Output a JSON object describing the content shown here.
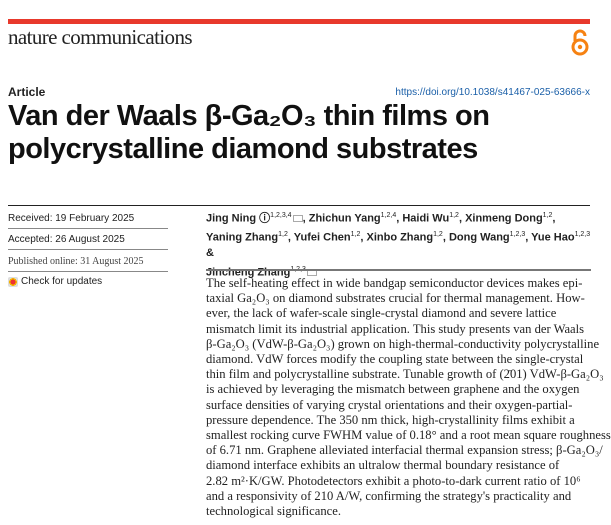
{
  "journal": "nature communications",
  "open_access_icon": "open-access-lock-icon",
  "colors": {
    "brand_bar": "#e8392c",
    "open_access": "#f68212",
    "doi_link": "#1a5fa8"
  },
  "article_type": "Article",
  "doi": "https://doi.org/10.1038/s41467-025-63666-x",
  "title": [
    "Van der Waals β-Ga₂O₃ thin films on",
    "polycrystalline diamond substrates"
  ],
  "dates": {
    "received": "Received: 19 February 2025",
    "accepted": "Accepted: 26 August 2025",
    "published": "Published online: 31 August 2025"
  },
  "check_updates": "Check for updates",
  "authors": [
    {
      "name": "Jing Ning",
      "aff": "1,2,3,4",
      "orcid": true,
      "corresponding": true
    },
    {
      "name": "Zhichun Yang",
      "aff": "1,2,4"
    },
    {
      "name": "Haidi Wu",
      "aff": "1,2"
    },
    {
      "name": "Xinmeng Dong",
      "aff": "1,2"
    },
    {
      "name": "Yaning Zhang",
      "aff": "1,2"
    },
    {
      "name": "Yufei Chen",
      "aff": "1,2"
    },
    {
      "name": "Xinbo Zhang",
      "aff": "1,2"
    },
    {
      "name": "Dong Wang",
      "aff": "1,2,3"
    },
    {
      "name": "Yue Hao",
      "aff": "1,2,3"
    },
    {
      "name": "Jincheng Zhang",
      "aff": "1,2,3",
      "corresponding": true
    }
  ],
  "abstract_lines": [
    "The self-heating effect in wide bandgap semiconductor devices makes epi-",
    "taxial Ga₂O₃ on diamond substrates crucial for thermal management. How-",
    "ever, the lack of wafer-scale single-crystal diamond and severe lattice",
    "mismatch limit its industrial application. This study presents van der Waals",
    "β-Ga₂O₃ (VdW-β-Ga₂O₃) grown on high-thermal-conductivity polycrystalline",
    "diamond. VdW forces modify the coupling state between the single-crystal",
    "thin film and polycrystalline substrate. Tunable growth of (2̄01) VdW-β-Ga₂O₃",
    "is achieved by leveraging the mismatch between graphene and the oxygen",
    "surface densities of varying crystal orientations and their oxygen-partial-",
    "pressure dependence. The 350 nm thick, high-crystallinity films exhibit a",
    "smallest rocking curve FWHM value of 0.18° and a root mean square roughness",
    "of 6.71 nm. Graphene alleviated interfacial thermal expansion stress; β-Ga₂O₃/",
    "diamond interface exhibits an ultralow thermal boundary resistance of",
    "2.82 m²·K/GW. Photodetectors exhibit a photo-to-dark current ratio of 10⁶",
    "and a responsivity of 210 A/W, confirming the strategy's practicality and",
    "technological significance."
  ]
}
